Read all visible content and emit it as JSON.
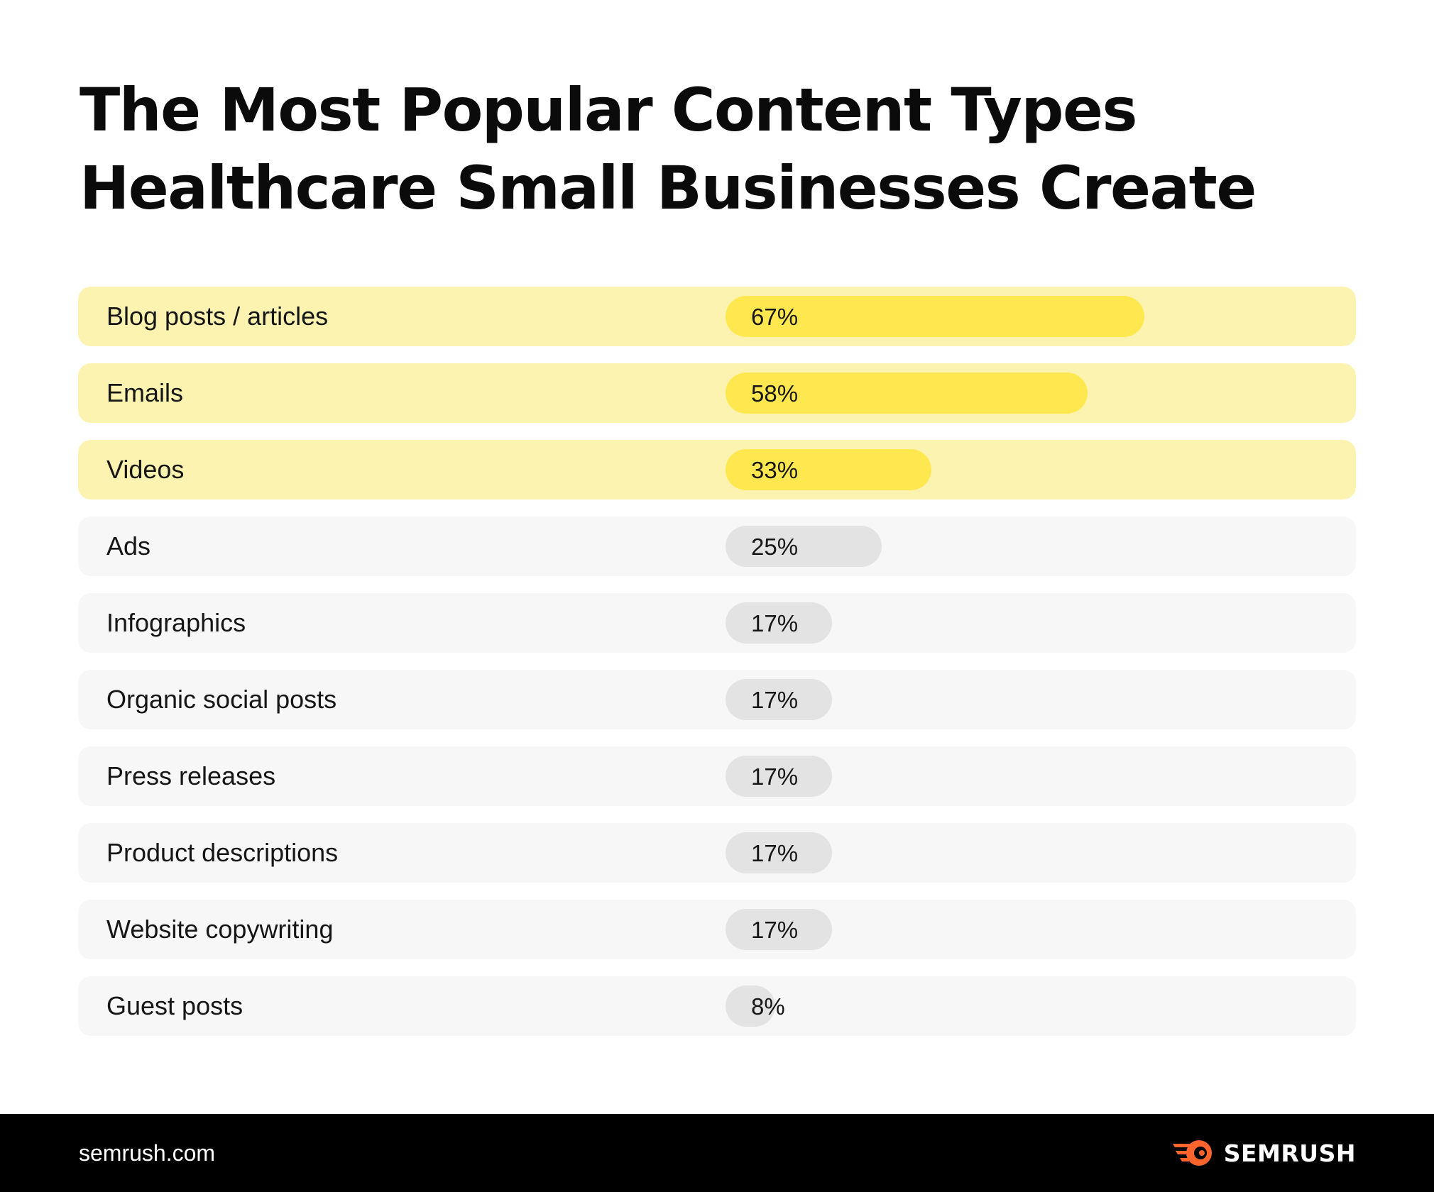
{
  "title_lines": [
    "The Most Popular Content Types",
    "Healthcare Small Businesses Create"
  ],
  "colors": {
    "highlight_row": "#fdf3b1",
    "highlight_bar": "#ffe84f",
    "plain_row": "#f7f7f7",
    "plain_bar": "#e3e3e3",
    "footer": "#000000",
    "logo_accent": "#ff642d"
  },
  "chart_data": {
    "type": "bar",
    "orientation": "horizontal",
    "title": "The Most Popular Content Types Healthcare Small Businesses Create",
    "categories": [
      "Blog posts / articles",
      "Emails",
      "Videos",
      "Ads",
      "Infographics",
      "Organic social posts",
      "Press releases",
      "Product descriptions",
      "Website copywriting",
      "Guest posts"
    ],
    "values": [
      67,
      58,
      33,
      25,
      17,
      17,
      17,
      17,
      17,
      8
    ],
    "value_labels": [
      "67%",
      "58%",
      "33%",
      "25%",
      "17%",
      "17%",
      "17%",
      "17%",
      "17%",
      "8%"
    ],
    "highlighted": [
      true,
      true,
      true,
      false,
      false,
      false,
      false,
      false,
      false,
      false
    ],
    "unit": "%",
    "xlim": [
      0,
      100
    ],
    "grid": false,
    "legend": "none"
  },
  "footer": {
    "site": "semrush.com",
    "logo_text": "SEMRUSH",
    "logo_icon": "semrush-flame-icon"
  }
}
